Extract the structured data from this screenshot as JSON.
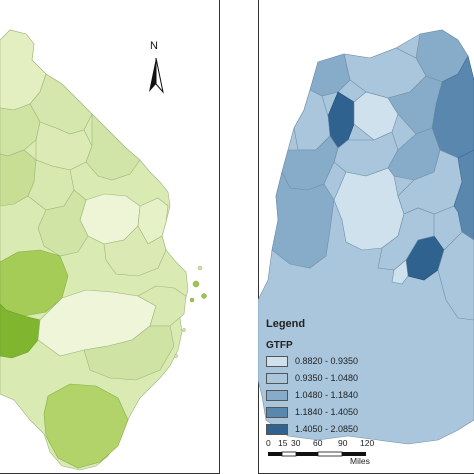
{
  "left_map": {
    "north_label": "N",
    "colors": {
      "light": "#e9f3cb",
      "medium": "#cfe3a3",
      "strong": "#a6cc58",
      "darkest": "#7fb52f"
    }
  },
  "right_map": {
    "legend": {
      "title": "Legend",
      "subtitle": "GTFP",
      "classes": [
        {
          "label": "0.8820 - 0.9350",
          "color": "#cfe1ec"
        },
        {
          "label": "0.9350 - 1.0480",
          "color": "#a9c6dc"
        },
        {
          "label": "1.0480 - 1.1840",
          "color": "#86acc9"
        },
        {
          "label": "1.1840 - 1.4050",
          "color": "#5a87ae"
        },
        {
          "label": "1.4050 - 2.0850",
          "color": "#2f628f"
        }
      ]
    },
    "scale_bar": {
      "ticks": [
        "0",
        "15",
        "30",
        "60",
        "90",
        "120"
      ],
      "unit": "Miles"
    }
  }
}
